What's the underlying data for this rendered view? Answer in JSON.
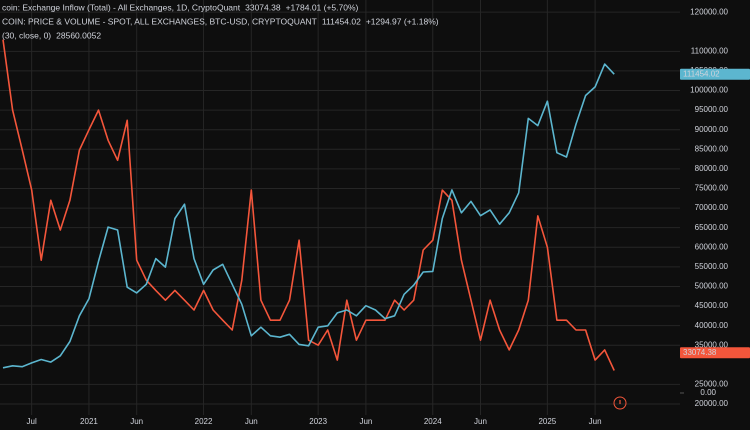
{
  "chart_data": {
    "type": "line",
    "categories": [
      null,
      null,
      null,
      "Jul",
      null,
      null,
      null,
      null,
      null,
      "2021",
      null,
      null,
      null,
      null,
      "Jun",
      null,
      null,
      null,
      null,
      null,
      null,
      "2022",
      null,
      null,
      null,
      null,
      "Jun",
      null,
      null,
      null,
      null,
      null,
      null,
      "2023",
      null,
      null,
      null,
      null,
      "Jun",
      null,
      null,
      null,
      null,
      null,
      null,
      "2024",
      null,
      null,
      null,
      null,
      "Jun",
      null,
      null,
      null,
      null,
      null,
      null,
      "2025",
      null,
      null,
      null,
      null,
      "Jun",
      null,
      null
    ],
    "series": [
      {
        "name": "coin: Exchange Inflow (Total) - All Exchanges, 1D, CryptoQuant",
        "color": "#f4563b",
        "axis": "y",
        "last_value": 33074.38,
        "change": "+1784.01 (+5.70%)",
        "values": [
          113000,
          95000,
          85000,
          74600,
          56700,
          72000,
          64400,
          72000,
          84800,
          90000,
          95000,
          87300,
          82200,
          92400,
          56700,
          51600,
          49000,
          46500,
          49000,
          46500,
          44000,
          49000,
          44000,
          41400,
          38900,
          51600,
          74600,
          46500,
          41400,
          41400,
          46500,
          61800,
          36300,
          35000,
          38900,
          31200,
          46500,
          36300,
          41400,
          41400,
          41400,
          46500,
          44000,
          46500,
          59300,
          61800,
          74600,
          72000,
          56700,
          46500,
          36300,
          46500,
          38900,
          33800,
          38900,
          46500,
          68000,
          60000,
          41400,
          41400,
          38900,
          38900,
          31200,
          33800,
          28560
        ]
      },
      {
        "name": "COIN: PRICE & VOLUME - SPOT, ALL EXCHANGES, BTC-USD, CRYPTOQUANT",
        "color": "#5cb6cf",
        "axis": "y2",
        "last_value": 111454.02,
        "change": "+1294.97 (+1.18%)",
        "values": [
          8800,
          9500,
          9200,
          10500,
          11700,
          10800,
          13000,
          18000,
          27000,
          33000,
          46000,
          58000,
          57000,
          37000,
          35000,
          38000,
          47000,
          44000,
          61000,
          66000,
          47000,
          38000,
          43000,
          45000,
          38000,
          31000,
          20000,
          23000,
          20000,
          19500,
          20500,
          17000,
          16500,
          23000,
          23500,
          28000,
          29000,
          27000,
          30500,
          29000,
          26000,
          27000,
          34500,
          37700,
          42300,
          42500,
          61000,
          71000,
          63000,
          67000,
          62000,
          64000,
          59000,
          63000,
          70000,
          96000,
          93500,
          102000,
          84000,
          82500,
          94000,
          104000,
          107000,
          115000,
          111454.02
        ]
      }
    ],
    "indicator": {
      "label": "(30, close, 0)",
      "value_label": "28560.0052"
    },
    "ylim": [
      17200,
      123100
    ],
    "yticks": [
      {
        "value": 120000,
        "label": "120000.00"
      },
      {
        "value": 110000,
        "label": "110000.00"
      },
      {
        "value": 105000,
        "label": "105000.00"
      },
      {
        "value": 100000,
        "label": "100000.00"
      },
      {
        "value": 95000,
        "label": "95000.00"
      },
      {
        "value": 90000,
        "label": "90000.00"
      },
      {
        "value": 85000,
        "label": "85000.00"
      },
      {
        "value": 80000,
        "label": "80000.00"
      },
      {
        "value": 75000,
        "label": "75000.00"
      },
      {
        "value": 70000,
        "label": "70000.00"
      },
      {
        "value": 65000,
        "label": "65000.00"
      },
      {
        "value": 60000,
        "label": "60000.00"
      },
      {
        "value": 55000,
        "label": "55000.00"
      },
      {
        "value": 50000,
        "label": "50000.00"
      },
      {
        "value": 45000,
        "label": "45000.00"
      },
      {
        "value": 40000,
        "label": "40000.00"
      },
      {
        "value": 35000,
        "label": "35000.00"
      },
      {
        "value": 25000,
        "label": "25000.00"
      },
      {
        "value": 20000,
        "label": "20000.00"
      }
    ],
    "y2lim": [
      -7700,
      137400
    ],
    "y2ticks": [
      {
        "value": 0,
        "label": "0.00"
      }
    ],
    "grid": true
  }
}
